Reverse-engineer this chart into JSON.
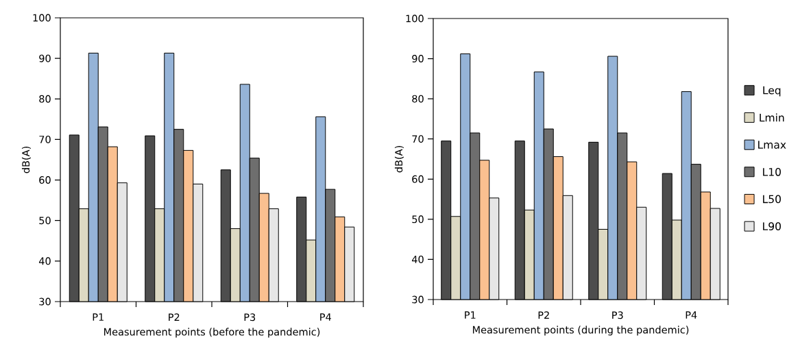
{
  "chart_data": [
    {
      "type": "bar",
      "xlabel": "Measurement points (before the pandemic)",
      "ylabel": "dB(A)",
      "categories": [
        "P1",
        "P2",
        "P3",
        "P4"
      ],
      "ylim": [
        30,
        100
      ],
      "yticks": [
        30,
        40,
        50,
        60,
        70,
        80,
        90,
        100
      ],
      "grid": false,
      "legend": false,
      "series": [
        {
          "color": "#4d4d4d",
          "values": [
            71.1,
            70.9,
            62.5,
            55.8
          ]
        },
        {
          "color": "#ddd9c3",
          "values": [
            52.9,
            52.9,
            48.0,
            45.2
          ]
        },
        {
          "color": "#95b3d7",
          "values": [
            91.3,
            91.3,
            83.6,
            75.6
          ]
        },
        {
          "color": "#6e6e6e",
          "values": [
            73.1,
            72.5,
            65.4,
            57.7
          ]
        },
        {
          "color": "#fac090",
          "values": [
            68.2,
            67.3,
            56.7,
            50.9
          ]
        },
        {
          "color": "#e6e6e6",
          "values": [
            59.3,
            59.0,
            52.9,
            48.4
          ]
        }
      ]
    },
    {
      "type": "bar",
      "xlabel": "Measurement points (during the pandemic)",
      "ylabel": "dB(A)",
      "categories": [
        "P1",
        "P2",
        "P3",
        "P4"
      ],
      "ylim": [
        30,
        100
      ],
      "yticks": [
        30,
        40,
        50,
        60,
        70,
        80,
        90,
        100
      ],
      "grid": false,
      "legend": "right",
      "series": [
        {
          "name": "Leq",
          "color": "#4d4d4d",
          "values": [
            69.5,
            69.5,
            69.2,
            61.4
          ]
        },
        {
          "name": "Lmin",
          "color": "#ddd9c3",
          "values": [
            50.7,
            52.3,
            47.5,
            49.8
          ]
        },
        {
          "name": "Lmax",
          "color": "#95b3d7",
          "values": [
            91.2,
            86.7,
            90.6,
            81.8
          ]
        },
        {
          "name": "L10",
          "color": "#6e6e6e",
          "values": [
            71.5,
            72.5,
            71.5,
            63.7
          ]
        },
        {
          "name": "L50",
          "color": "#fac090",
          "values": [
            64.7,
            65.6,
            64.3,
            56.8
          ]
        },
        {
          "name": "L90",
          "color": "#e6e6e6",
          "values": [
            55.3,
            55.9,
            53.0,
            52.7
          ]
        }
      ]
    }
  ]
}
